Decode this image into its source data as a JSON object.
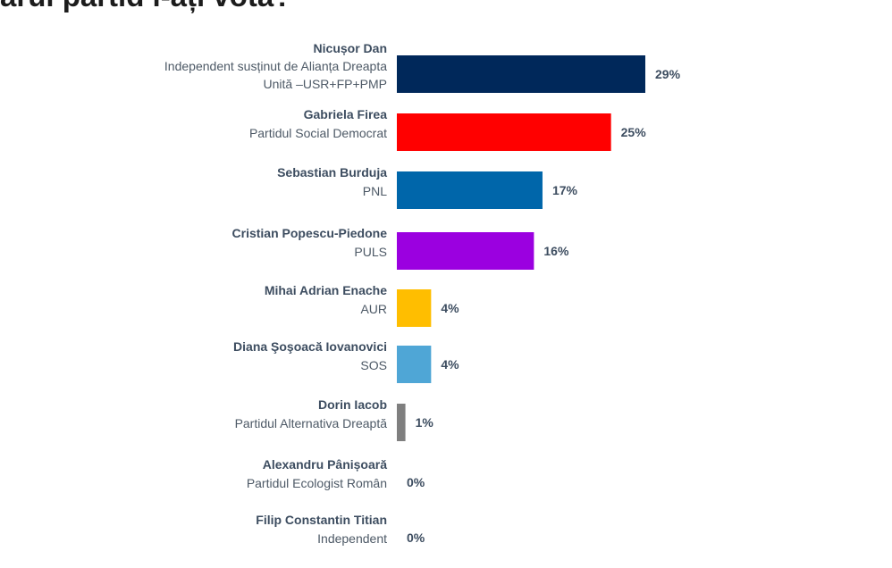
{
  "title": "ărui partid î-ați vota?",
  "chart_data": {
    "type": "bar",
    "orientation": "horizontal",
    "title": "ărui partid î-ați vota?",
    "xlim": [
      0,
      29
    ],
    "grid": false,
    "legend": "none",
    "categories": [
      {
        "name": "Nicușor Dan",
        "party": [
          "Independent susținut de Alianța Dreapta",
          "Unită –USR+FP+PMP"
        ]
      },
      {
        "name": "Gabriela Firea",
        "party": [
          "Partidul Social Democrat"
        ]
      },
      {
        "name": "Sebastian Burduja",
        "party": [
          "PNL"
        ]
      },
      {
        "name": "Cristian Popescu-Piedone",
        "party": [
          "PULS"
        ]
      },
      {
        "name": "Mihai Adrian Enache",
        "party": [
          "AUR"
        ]
      },
      {
        "name": "Diana Şoşoacă Iovanovici",
        "party": [
          "SOS"
        ]
      },
      {
        "name": "Dorin Iacob",
        "party": [
          "Partidul Alternativa Dreaptă"
        ]
      },
      {
        "name": "Alexandru Pânișoară",
        "party": [
          "Partidul Ecologist Român"
        ]
      },
      {
        "name": "Filip Constantin Titian",
        "party": [
          "Independent"
        ]
      }
    ],
    "values": [
      29,
      25,
      17,
      16,
      4,
      4,
      1,
      0,
      0
    ],
    "value_labels": [
      "29%",
      "25%",
      "17%",
      "16%",
      "4%",
      "4%",
      "1%",
      "0%",
      "0%"
    ],
    "colors": [
      "#00285a",
      "#ff0000",
      "#0066aa",
      "#9b00e0",
      "#ffbe00",
      "#4fa6d6",
      "#7f7f7f",
      "#7f7f7f",
      "#7f7f7f"
    ]
  }
}
